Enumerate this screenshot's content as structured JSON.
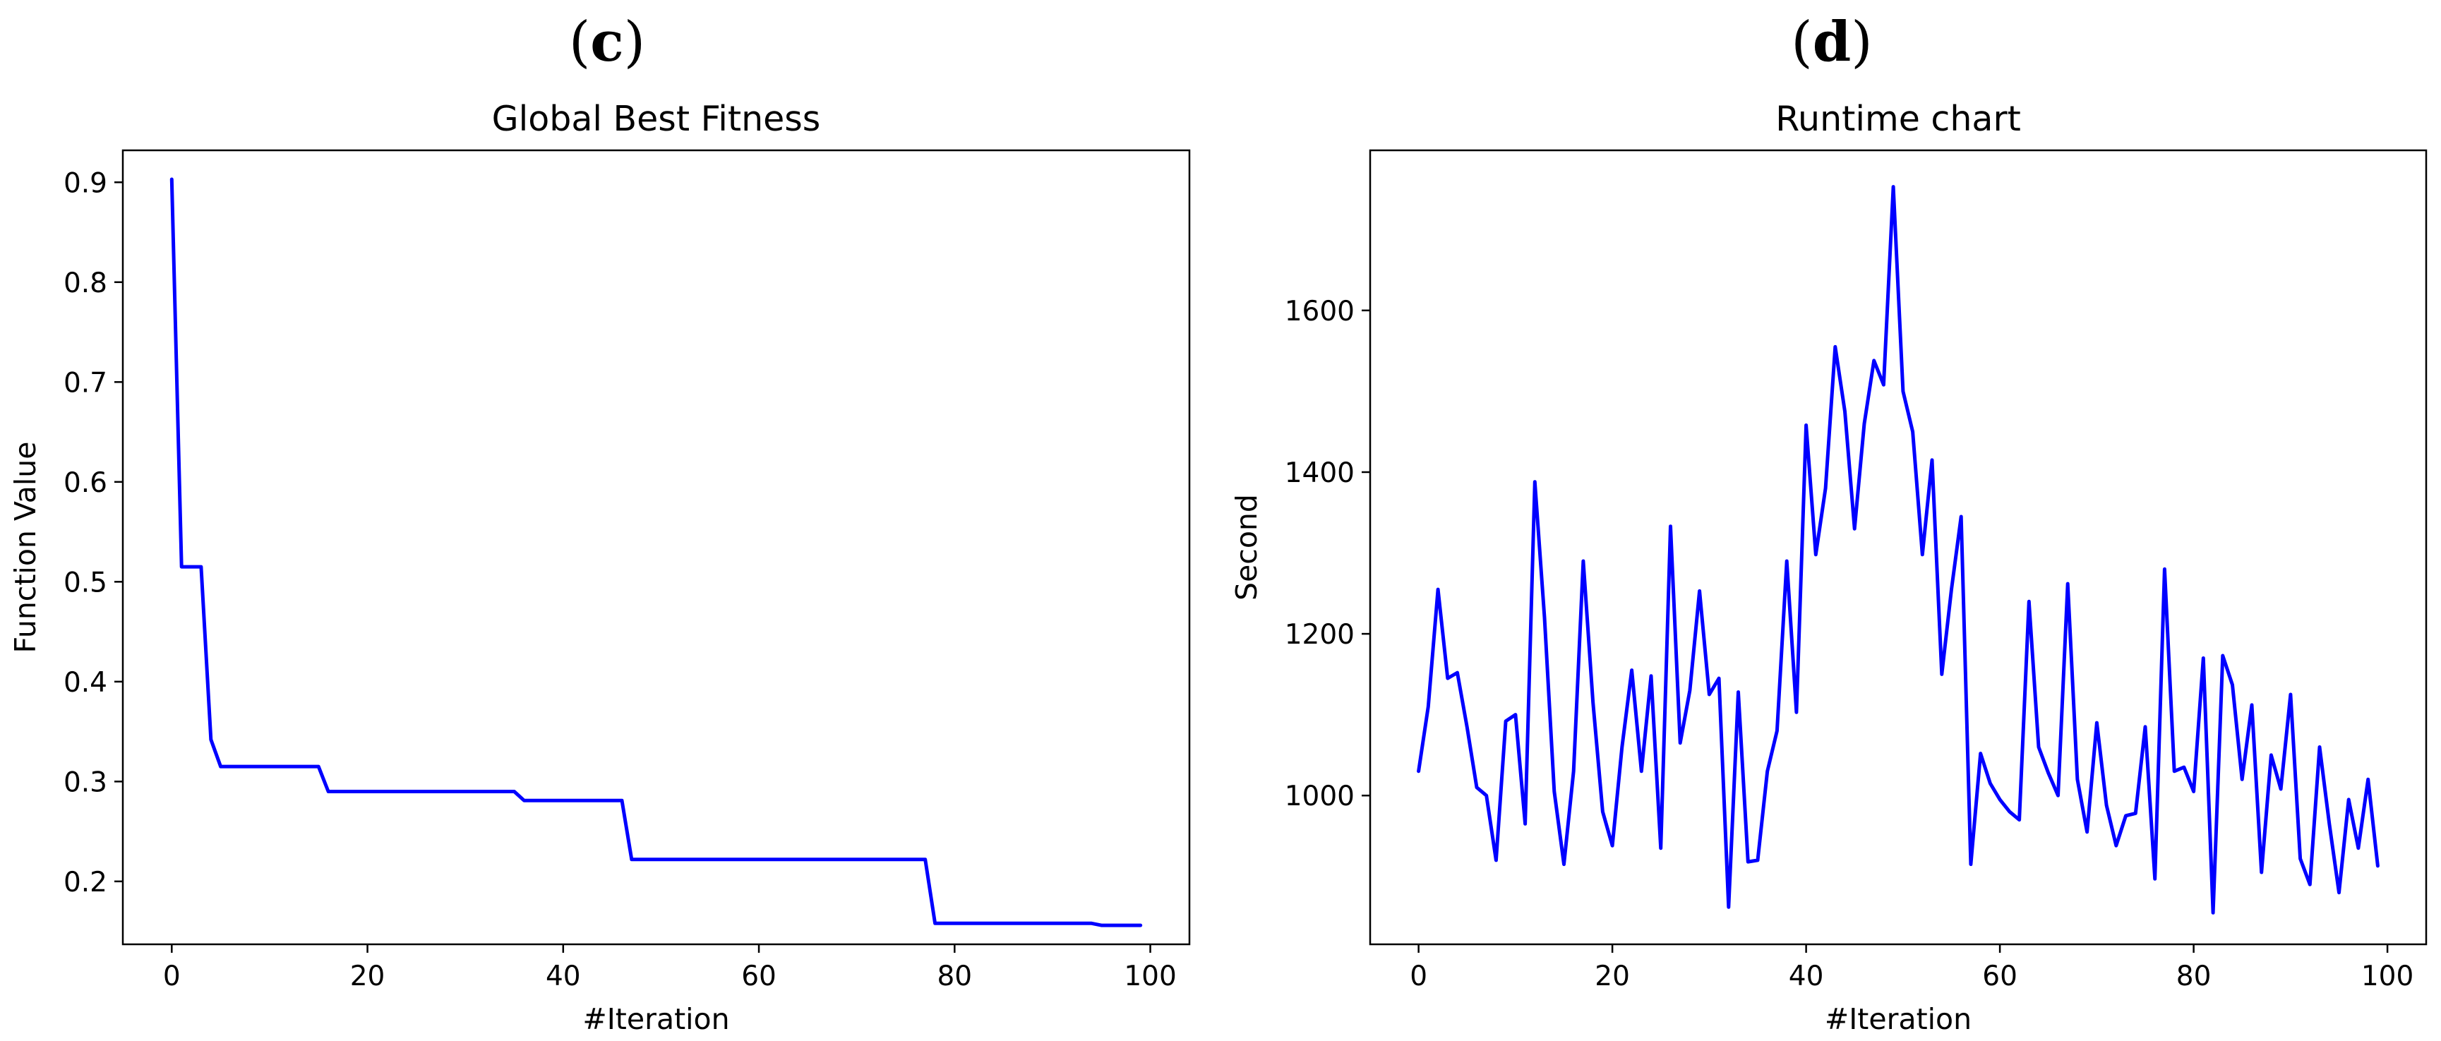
{
  "panels": [
    {
      "label_pre": "(",
      "label_letter": "c",
      "label_post": ")"
    },
    {
      "label_pre": "(",
      "label_letter": "d",
      "label_post": ")"
    }
  ],
  "chart_data": [
    {
      "type": "line",
      "title": "Global Best Fitness",
      "xlabel": "#Iteration",
      "ylabel": "Function Value",
      "xlim": [
        -5,
        104
      ],
      "ylim": [
        0.137,
        0.932
      ],
      "xticks": [
        0,
        20,
        40,
        60,
        80,
        100
      ],
      "yticks": [
        0.2,
        0.3,
        0.4,
        0.5,
        0.6,
        0.7,
        0.8,
        0.9
      ],
      "ytick_labels": [
        "0.2",
        "0.3",
        "0.4",
        "0.5",
        "0.6",
        "0.7",
        "0.8",
        "0.9"
      ],
      "grid": false,
      "color": "#0000ff",
      "series": [
        {
          "x": [
            0,
            1,
            2,
            3,
            4,
            5,
            6,
            7,
            8,
            9,
            10,
            11,
            12,
            13,
            14,
            15,
            16,
            17,
            18,
            19,
            20,
            21,
            22,
            23,
            24,
            25,
            26,
            27,
            28,
            29,
            30,
            31,
            32,
            33,
            34,
            35,
            36,
            37,
            38,
            39,
            40,
            41,
            42,
            43,
            44,
            45,
            46,
            47,
            48,
            49,
            50,
            51,
            52,
            53,
            54,
            55,
            56,
            57,
            58,
            59,
            60,
            61,
            62,
            63,
            64,
            65,
            66,
            67,
            68,
            69,
            70,
            71,
            72,
            73,
            74,
            75,
            76,
            77,
            78,
            79,
            80,
            81,
            82,
            83,
            84,
            85,
            86,
            87,
            88,
            89,
            90,
            91,
            92,
            93,
            94,
            95,
            96,
            97,
            98,
            99
          ],
          "values": [
            0.903,
            0.515,
            0.515,
            0.515,
            0.342,
            0.315,
            0.315,
            0.315,
            0.315,
            0.315,
            0.315,
            0.315,
            0.315,
            0.315,
            0.315,
            0.315,
            0.29,
            0.29,
            0.29,
            0.29,
            0.29,
            0.29,
            0.29,
            0.29,
            0.29,
            0.29,
            0.29,
            0.29,
            0.29,
            0.29,
            0.29,
            0.29,
            0.29,
            0.29,
            0.29,
            0.29,
            0.281,
            0.281,
            0.281,
            0.281,
            0.281,
            0.281,
            0.281,
            0.281,
            0.281,
            0.281,
            0.281,
            0.222,
            0.222,
            0.222,
            0.222,
            0.222,
            0.222,
            0.222,
            0.222,
            0.222,
            0.222,
            0.222,
            0.222,
            0.222,
            0.222,
            0.222,
            0.222,
            0.222,
            0.222,
            0.222,
            0.222,
            0.222,
            0.222,
            0.222,
            0.222,
            0.222,
            0.222,
            0.222,
            0.222,
            0.222,
            0.222,
            0.222,
            0.158,
            0.158,
            0.158,
            0.158,
            0.158,
            0.158,
            0.158,
            0.158,
            0.158,
            0.158,
            0.158,
            0.158,
            0.158,
            0.158,
            0.158,
            0.158,
            0.158,
            0.156,
            0.156,
            0.156,
            0.156,
            0.156
          ]
        }
      ]
    },
    {
      "type": "line",
      "title": "Runtime chart",
      "xlabel": "#Iteration",
      "ylabel": "Second",
      "xlim": [
        -5,
        104
      ],
      "ylim": [
        816,
        1798
      ],
      "xticks": [
        0,
        20,
        40,
        60,
        80,
        100
      ],
      "yticks": [
        1000,
        1200,
        1400,
        1600
      ],
      "ytick_labels": [
        "1000",
        "1200",
        "1400",
        "1600"
      ],
      "grid": false,
      "color": "#0000ff",
      "series": [
        {
          "x": [
            0,
            1,
            2,
            3,
            4,
            5,
            6,
            7,
            8,
            9,
            10,
            11,
            12,
            13,
            14,
            15,
            16,
            17,
            18,
            19,
            20,
            21,
            22,
            23,
            24,
            25,
            26,
            27,
            28,
            29,
            30,
            31,
            32,
            33,
            34,
            35,
            36,
            37,
            38,
            39,
            40,
            41,
            42,
            43,
            44,
            45,
            46,
            47,
            48,
            49,
            50,
            51,
            52,
            53,
            54,
            55,
            56,
            57,
            58,
            59,
            60,
            61,
            62,
            63,
            64,
            65,
            66,
            67,
            68,
            69,
            70,
            71,
            72,
            73,
            74,
            75,
            76,
            77,
            78,
            79,
            80,
            81,
            82,
            83,
            84,
            85,
            86,
            87,
            88,
            89,
            90,
            91,
            92,
            93,
            94,
            95,
            96,
            97,
            98,
            99
          ],
          "values": [
            1030,
            1110,
            1255,
            1145,
            1152,
            1085,
            1010,
            1000,
            920,
            1092,
            1100,
            965,
            1388,
            1220,
            1005,
            915,
            1030,
            1290,
            1115,
            980,
            938,
            1060,
            1155,
            1030,
            1148,
            935,
            1333,
            1065,
            1130,
            1253,
            1125,
            1145,
            862,
            1128,
            918,
            920,
            1030,
            1080,
            1290,
            1103,
            1458,
            1298,
            1380,
            1555,
            1475,
            1330,
            1460,
            1538,
            1508,
            1753,
            1500,
            1450,
            1298,
            1415,
            1150,
            1255,
            1345,
            915,
            1052,
            1015,
            995,
            980,
            970,
            1240,
            1060,
            1028,
            1000,
            1262,
            1020,
            955,
            1090,
            988,
            938,
            975,
            978,
            1085,
            897,
            1280,
            1030,
            1035,
            1005,
            1170,
            855,
            1173,
            1137,
            1020,
            1112,
            905,
            1050,
            1008,
            1125,
            922,
            890,
            1060,
            965,
            880,
            995,
            935,
            1020,
            913
          ]
        }
      ]
    }
  ]
}
